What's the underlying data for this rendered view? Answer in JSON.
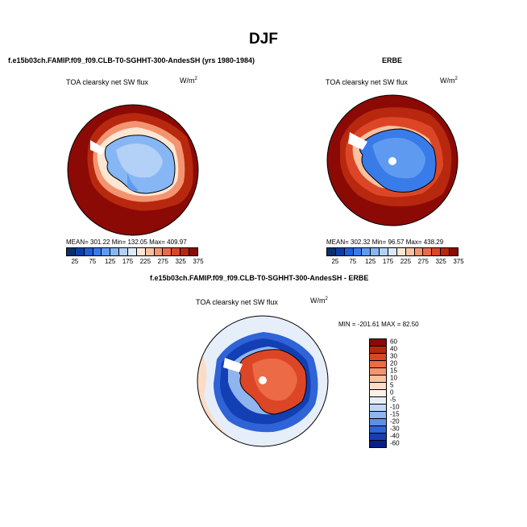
{
  "page": {
    "title": "DJF"
  },
  "panels": {
    "model": {
      "run_title": "f.e15b03ch.FAMIP.f09_f09.CLB-T0-SGHHT-300-AndesSH (yrs 1980-1984)",
      "variable": "TOA clearsky net SW flux",
      "units": "W/m",
      "units_sup": "2",
      "stats": "MEAN= 301.22  Min= 132.05  Max= 409.97",
      "colorbar_labels": [
        "25",
        "75",
        "125",
        "175",
        "225",
        "275",
        "325",
        "375"
      ]
    },
    "obs": {
      "run_title": "ERBE",
      "variable": "TOA clearsky net SW flux",
      "units": "W/m",
      "units_sup": "2",
      "stats": "MEAN= 302.32  Min=  96.57  Max= 438.29",
      "colorbar_labels": [
        "25",
        "75",
        "125",
        "175",
        "225",
        "275",
        "325",
        "375"
      ]
    },
    "diff": {
      "run_title": "f.e15b03ch.FAMIP.f09_f09.CLB-T0-SGHHT-300-AndesSH - ERBE",
      "variable": "TOA clearsky net SW flux",
      "units": "W/m",
      "units_sup": "2",
      "stats": "MIN = -201.61  MAX =   82.50",
      "colorbar_labels": [
        "60",
        "40",
        "30",
        "20",
        "15",
        "10",
        "5",
        "0",
        "-5",
        "-10",
        "-15",
        "-20",
        "-30",
        "-40",
        "-60"
      ]
    }
  },
  "colors": {
    "abs_scale": [
      "#08306b",
      "#0a3fa8",
      "#1f5fd8",
      "#3a7bea",
      "#5e9bf0",
      "#86b6f3",
      "#b3d0f6",
      "#dce9f9",
      "#fde6d4",
      "#f9c1a0",
      "#f39470",
      "#ec6a45",
      "#dc4626",
      "#b7280f",
      "#8b0a05"
    ],
    "diff_scale": [
      "#8b0a05",
      "#b7280f",
      "#dc4626",
      "#ec6a45",
      "#f39470",
      "#f9c1a0",
      "#fcdcc6",
      "#fdf0e6",
      "#e6eefa",
      "#c3d6f3",
      "#90b4ee",
      "#5e8fe5",
      "#2f63d6",
      "#133fb5",
      "#071f8a"
    ]
  }
}
